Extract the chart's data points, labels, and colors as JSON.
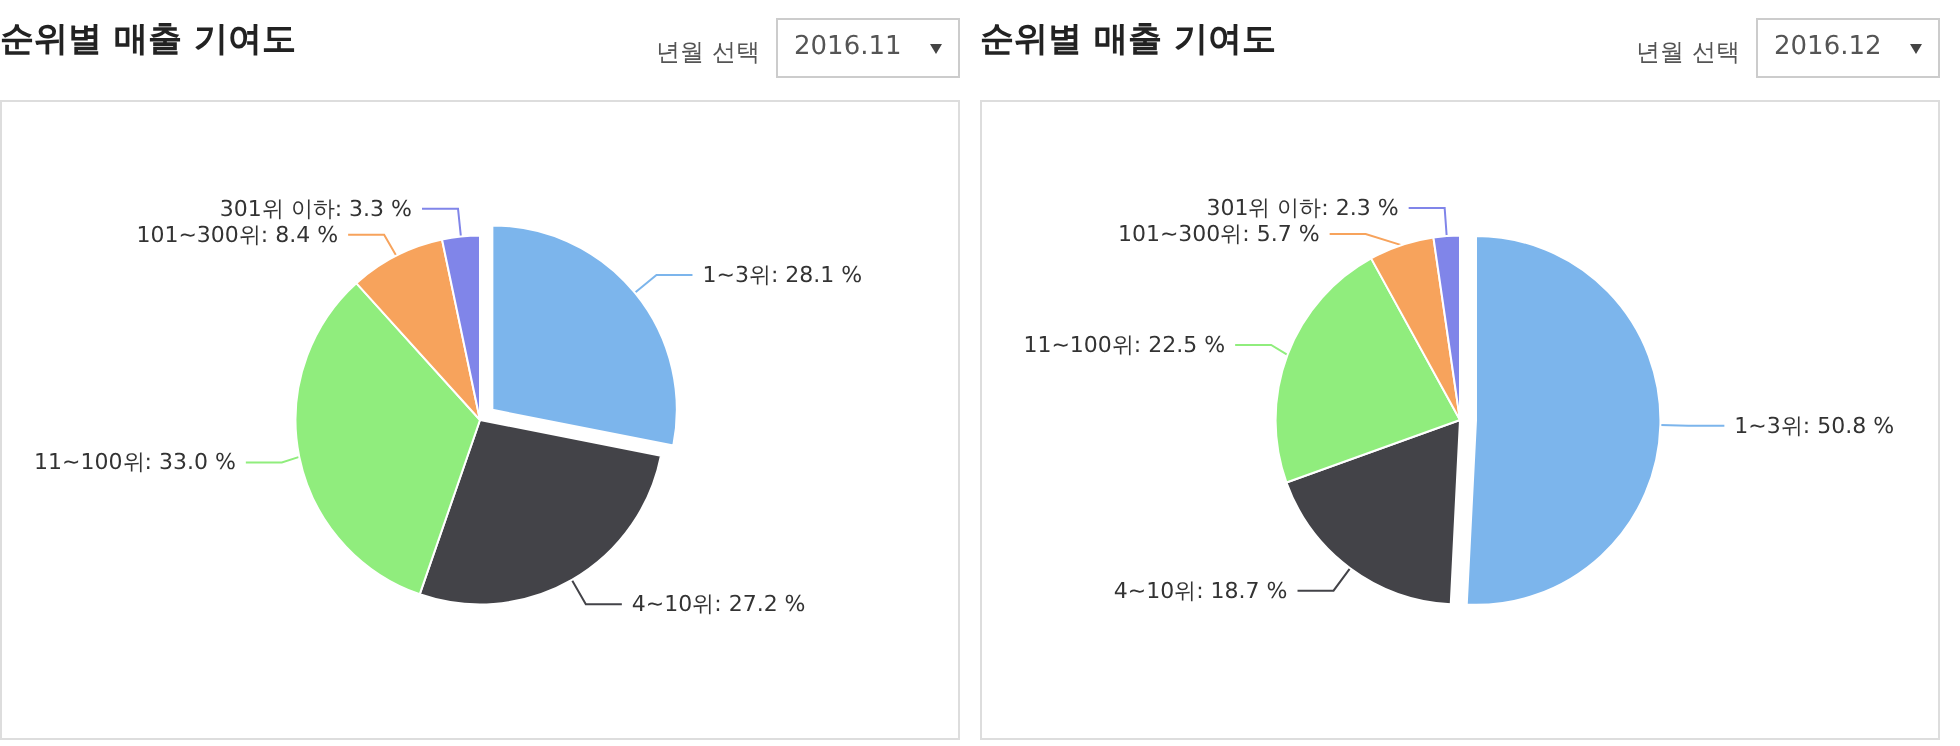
{
  "chart_data": [
    {
      "type": "pie",
      "title": "순위별 매출 기여도",
      "annotations": [
        "년월 선택",
        "2016.11"
      ],
      "categories": [
        "1~3위",
        "4~10위",
        "11~100위",
        "101~300위",
        "301위 이하"
      ],
      "values": [
        28.1,
        27.2,
        33.0,
        8.4,
        3.3
      ],
      "value_labels": [
        ": 28.1 %",
        ": 27.2 %",
        ": 33.0 %",
        ": 8.4 %",
        ": 3.3 %"
      ],
      "colors": [
        "#7cb5ec",
        "#434348",
        "#90ed7d",
        "#f7a35c",
        "#8085e9"
      ],
      "legend": false
    },
    {
      "type": "pie",
      "title": "순위별 매출 기여도",
      "annotations": [
        "년월 선택",
        "2016.12"
      ],
      "categories": [
        "1~3위",
        "4~10위",
        "11~100위",
        "101~300위",
        "301위 이하"
      ],
      "values": [
        50.8,
        18.7,
        22.5,
        5.7,
        2.3
      ],
      "value_labels": [
        ": 50.8 %",
        ": 18.7 %",
        ": 22.5 %",
        ": 5.7 %",
        ": 2.3 %"
      ],
      "colors": [
        "#7cb5ec",
        "#434348",
        "#90ed7d",
        "#f7a35c",
        "#8085e9"
      ],
      "legend": false
    }
  ]
}
